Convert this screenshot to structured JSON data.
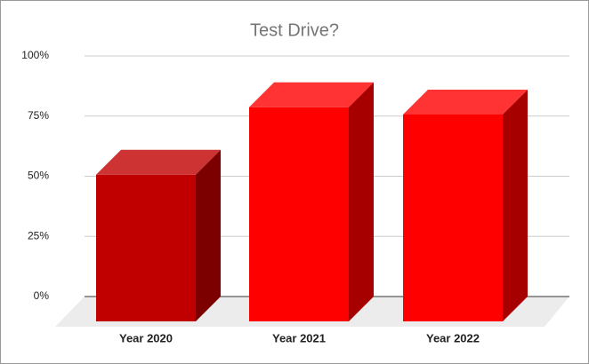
{
  "chart_data": {
    "type": "bar3d",
    "title": "Test Drive?",
    "categories": [
      "Year 2020",
      "Year 2021",
      "Year 2022"
    ],
    "values": [
      61,
      89,
      86
    ],
    "colors": [
      "#c00000",
      "#ff0000",
      "#ff0000"
    ],
    "ylim": [
      0,
      100
    ],
    "yticks": [
      {
        "value": 0,
        "label": "0%"
      },
      {
        "value": 25,
        "label": "25%"
      },
      {
        "value": 50,
        "label": "50%"
      },
      {
        "value": 75,
        "label": "75%"
      },
      {
        "value": 100,
        "label": "100%"
      }
    ],
    "grid": true
  }
}
